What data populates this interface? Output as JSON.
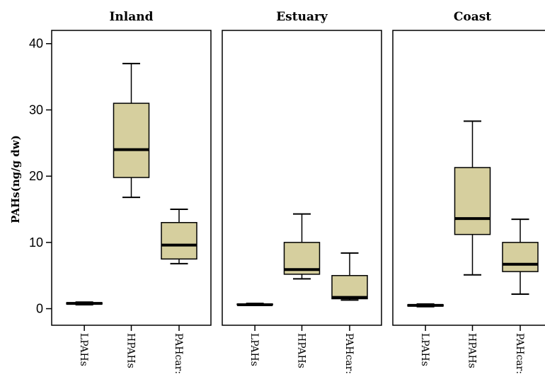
{
  "chart_data": {
    "type": "boxplot",
    "ylabel": "PAHs(ng/g dw)",
    "ylim": [
      -2.5,
      42
    ],
    "yticks": [
      0,
      10,
      20,
      30,
      40
    ],
    "categories": [
      "LPAHs",
      "HPAHs",
      "PAHcarc"
    ],
    "category_labels_visible": [
      "LPAHs",
      "HPAHs",
      "PAHcar:"
    ],
    "box_color": "#d6cf9e",
    "panels": [
      {
        "title": "Inland",
        "boxes": [
          {
            "category": "LPAHs",
            "min": 0.6,
            "q1": 0.7,
            "median": 0.8,
            "q3": 0.9,
            "max": 1.0
          },
          {
            "category": "HPAHs",
            "min": 16.8,
            "q1": 19.8,
            "median": 24.0,
            "q3": 31.0,
            "max": 37.0
          },
          {
            "category": "PAHcarc",
            "min": 6.8,
            "q1": 7.5,
            "median": 9.6,
            "q3": 13.0,
            "max": 15.0
          }
        ]
      },
      {
        "title": "Estuary",
        "boxes": [
          {
            "category": "LPAHs",
            "min": 0.5,
            "q1": 0.6,
            "median": 0.6,
            "q3": 0.7,
            "max": 0.8
          },
          {
            "category": "HPAHs",
            "min": 4.5,
            "q1": 5.2,
            "median": 5.9,
            "q3": 10.0,
            "max": 14.3
          },
          {
            "category": "PAHcarc",
            "min": 1.3,
            "q1": 1.5,
            "median": 1.7,
            "q3": 5.0,
            "max": 8.4
          }
        ]
      },
      {
        "title": "Coast",
        "boxes": [
          {
            "category": "LPAHs",
            "min": 0.3,
            "q1": 0.4,
            "median": 0.5,
            "q3": 0.6,
            "max": 0.7
          },
          {
            "category": "HPAHs",
            "min": 5.1,
            "q1": 11.2,
            "median": 13.6,
            "q3": 21.3,
            "max": 28.3
          },
          {
            "category": "PAHcarc",
            "min": 2.2,
            "q1": 5.6,
            "median": 6.7,
            "q3": 10.0,
            "max": 13.5
          }
        ]
      }
    ]
  }
}
